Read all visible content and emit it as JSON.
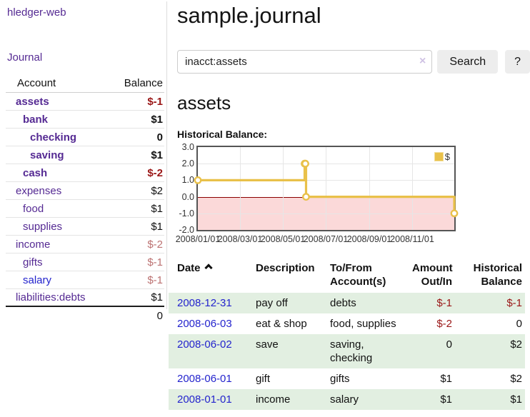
{
  "colors": {
    "brand_purple": "#552a93",
    "link_blue": "#2424cd",
    "negative": "#9a1616",
    "negative_soft": "#bc7272",
    "row_shade_green": "#e2efe1",
    "chart_line_yellow": "#e9c14a",
    "chart_negative_pink": "#fbd9d9",
    "chart_zero_line": "#8b0000",
    "text": "#111111",
    "muted_border": "#dddddd"
  },
  "sidebar": {
    "brand": "hledger-web",
    "nav_items": [
      {
        "label": "Journal"
      }
    ],
    "accounts": {
      "header": {
        "account": "Account",
        "balance": "Balance"
      },
      "rows": [
        {
          "name": "assets",
          "indent": 1,
          "bold": true,
          "link": "purple",
          "balance": "$-1",
          "balance_tone": "negative"
        },
        {
          "name": "bank",
          "indent": 2,
          "bold": true,
          "link": "purple",
          "balance": "$1",
          "balance_tone": "normal"
        },
        {
          "name": "checking",
          "indent": 3,
          "bold": true,
          "link": "purple",
          "balance": "0",
          "balance_tone": "normal"
        },
        {
          "name": "saving",
          "indent": 3,
          "bold": true,
          "link": "purple",
          "balance": "$1",
          "balance_tone": "normal"
        },
        {
          "name": "cash",
          "indent": 2,
          "bold": true,
          "link": "purple",
          "balance": "$-2",
          "balance_tone": "negative"
        },
        {
          "name": "expenses",
          "indent": 1,
          "bold": false,
          "link": "purple",
          "balance": "$2",
          "balance_tone": "normal"
        },
        {
          "name": "food",
          "indent": 2,
          "bold": false,
          "link": "purple",
          "balance": "$1",
          "balance_tone": "normal"
        },
        {
          "name": "supplies",
          "indent": 2,
          "bold": false,
          "link": "purple",
          "balance": "$1",
          "balance_tone": "normal"
        },
        {
          "name": "income",
          "indent": 1,
          "bold": false,
          "link": "purple",
          "balance": "$-2",
          "balance_tone": "negative-soft"
        },
        {
          "name": "gifts",
          "indent": 2,
          "bold": false,
          "link": "purple",
          "balance": "$-1",
          "balance_tone": "negative-soft"
        },
        {
          "name": "salary",
          "indent": 2,
          "bold": false,
          "link": "blue",
          "balance": "$-1",
          "balance_tone": "negative-soft"
        },
        {
          "name": "liabilities:debts",
          "indent": 1,
          "bold": false,
          "link": "purple",
          "balance": "$1",
          "balance_tone": "normal"
        }
      ],
      "total": "0"
    }
  },
  "main": {
    "title": "sample.journal",
    "search": {
      "value": "inacct:assets",
      "clear_icon": "×",
      "search_button": "Search",
      "help_button": "?"
    },
    "account_heading": "assets",
    "chart_label": "Historical Balance:",
    "register": {
      "sort_column": "Date",
      "sort_direction": "ascending",
      "columns": [
        {
          "key": "date",
          "label": "Date",
          "align": "left",
          "sorted": true
        },
        {
          "key": "description",
          "label": "Description",
          "align": "left",
          "sorted": false
        },
        {
          "key": "accounts",
          "label": "To/From Account(s)",
          "align": "left",
          "sorted": false
        },
        {
          "key": "amount",
          "label": "Amount Out/In",
          "align": "right",
          "sorted": false
        },
        {
          "key": "balance",
          "label": "Historical Balance",
          "align": "right",
          "sorted": false
        }
      ],
      "rows": [
        {
          "date": "2008-12-31",
          "description": "pay off",
          "accounts": "debts",
          "amount": "$-1",
          "amount_negative": true,
          "balance": "$-1",
          "balance_negative": true,
          "shaded": true
        },
        {
          "date": "2008-06-03",
          "description": "eat & shop",
          "accounts": "food, supplies",
          "amount": "$-2",
          "amount_negative": true,
          "balance": "0",
          "balance_negative": false,
          "shaded": false
        },
        {
          "date": "2008-06-02",
          "description": "save",
          "accounts": "saving, checking",
          "amount": "0",
          "amount_negative": false,
          "balance": "$2",
          "balance_negative": false,
          "shaded": true
        },
        {
          "date": "2008-06-01",
          "description": "gift",
          "accounts": "gifts",
          "amount": "$1",
          "amount_negative": false,
          "balance": "$2",
          "balance_negative": false,
          "shaded": false
        },
        {
          "date": "2008-01-01",
          "description": "income",
          "accounts": "salary",
          "amount": "$1",
          "amount_negative": false,
          "balance": "$1",
          "balance_negative": false,
          "shaded": true
        }
      ]
    }
  },
  "chart_data": {
    "type": "line",
    "title": "Historical Balance",
    "legend": {
      "label": "$",
      "position": "top-right"
    },
    "series": [
      {
        "name": "$",
        "step": true,
        "points": [
          [
            "2008-01-01",
            1
          ],
          [
            "2008-06-01",
            2
          ],
          [
            "2008-06-02",
            2
          ],
          [
            "2008-06-03",
            0
          ],
          [
            "2008-12-31",
            -1
          ]
        ]
      }
    ],
    "x_range": [
      "2008-01-01",
      "2008-12-31"
    ],
    "x_ticks": [
      {
        "date": "2008-01-01",
        "label": "2008/01/01"
      },
      {
        "date": "2008-03-01",
        "label": "2008/03/01"
      },
      {
        "date": "2008-05-01",
        "label": "2008/05/01"
      },
      {
        "date": "2008-07-01",
        "label": "2008/07/01"
      },
      {
        "date": "2008-09-01",
        "label": "2008/09/01"
      },
      {
        "date": "2008-11-01",
        "label": "2008/11/01"
      }
    ],
    "y_ticks": [
      3.0,
      2.0,
      1.0,
      0.0,
      -1.0,
      -2.0
    ],
    "ylim": [
      -2,
      3
    ],
    "grid": true,
    "negative_region": true
  }
}
